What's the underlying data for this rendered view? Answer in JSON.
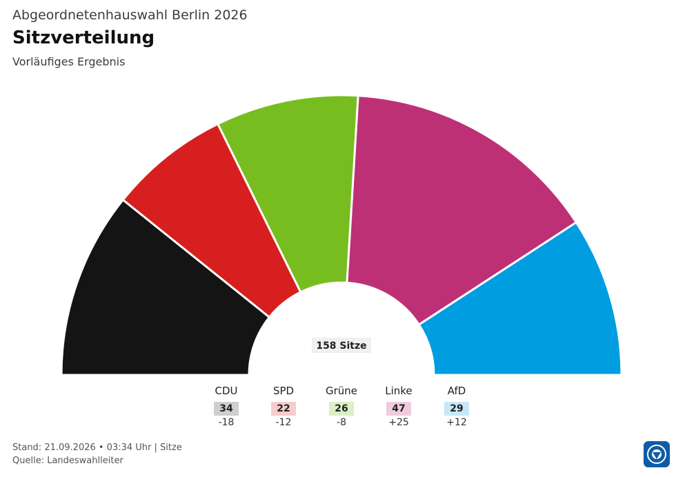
{
  "header": {
    "overtitle": "Abgeordnetenhauswahl Berlin 2026",
    "title": "Sitzverteilung",
    "subtitle": "Vorläufiges Ergebnis"
  },
  "total_label": "158 Sitze",
  "chart_data": {
    "type": "pie",
    "variant": "semicircle-parliament",
    "total_seats": 158,
    "parties": [
      {
        "name": "CDU",
        "seats": 34,
        "change": "-18",
        "color": "#141414",
        "badge_color": "#cfcfcf"
      },
      {
        "name": "SPD",
        "seats": 22,
        "change": "-12",
        "color": "#d71f1f",
        "badge_color": "#f6cccc"
      },
      {
        "name": "Grüne",
        "seats": 26,
        "change": "-8",
        "color": "#78bd1f",
        "badge_color": "#dcefc6"
      },
      {
        "name": "Linke",
        "seats": 47,
        "change": "+25",
        "color": "#be3075",
        "badge_color": "#f0cade"
      },
      {
        "name": "AfD",
        "seats": 29,
        "change": "+12",
        "color": "#009ee0",
        "badge_color": "#c6e8f8"
      }
    ]
  },
  "footer": {
    "line1": "Stand: 21.09.2026 • 03:34 Uhr | Sitze",
    "line2": "Quelle: Landeswahlleiter"
  },
  "logo": "tagesschau-logo-icon"
}
